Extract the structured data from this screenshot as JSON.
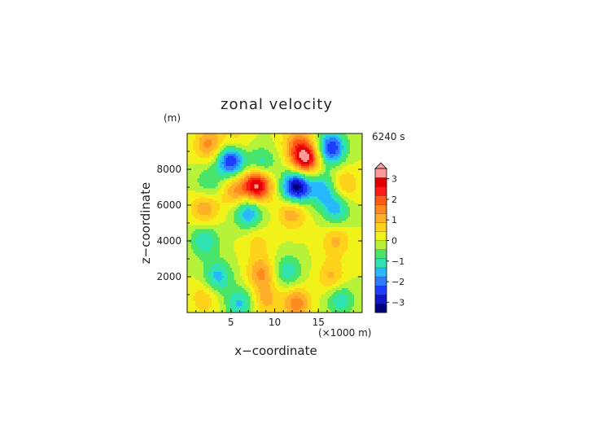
{
  "chart_data": {
    "type": "heatmap",
    "title": "zonal velocity",
    "xlabel": "x−coordinate",
    "ylabel": "z−coordinate",
    "x_unit": "(×1000 m)",
    "y_unit": "(m)",
    "time_label": "6240 s",
    "xlim": [
      0,
      20
    ],
    "ylim": [
      0,
      10000
    ],
    "x_ticks": [
      "5",
      "10",
      "15"
    ],
    "y_ticks": [
      "2000",
      "4000",
      "6000",
      "8000"
    ],
    "colorbar_ticks": [
      "3",
      "2",
      "1",
      "0",
      "−1",
      "−2",
      "−3"
    ],
    "colorbar_range": [
      -3.5,
      3.5
    ],
    "colors": [
      "#00007a",
      "#0f16c8",
      "#1e3cff",
      "#2f7bff",
      "#28b8ff",
      "#2fe3b3",
      "#49e56a",
      "#b7f23a",
      "#f2f21b",
      "#ffd21c",
      "#ffb02a",
      "#ff8a1f",
      "#ff5a14",
      "#ff1a1a",
      "#e00000",
      "#ff9a9a"
    ],
    "field_features": [
      {
        "x": 2.5,
        "z": 9400,
        "value": 1.5
      },
      {
        "x": 5.0,
        "z": 8500,
        "value": -2.8
      },
      {
        "x": 8.5,
        "z": 8300,
        "value": -1.2
      },
      {
        "x": 5.5,
        "z": 9500,
        "value": 0.8
      },
      {
        "x": 13.5,
        "z": 8600,
        "value": 3.2
      },
      {
        "x": 16.5,
        "z": 9200,
        "value": -2.6
      },
      {
        "x": 12.5,
        "z": 9500,
        "value": 1.2
      },
      {
        "x": 8.0,
        "z": 7100,
        "value": 3.3
      },
      {
        "x": 5.5,
        "z": 6800,
        "value": 1.3
      },
      {
        "x": 2.5,
        "z": 7300,
        "value": -0.9
      },
      {
        "x": 12.5,
        "z": 7000,
        "value": -3.4
      },
      {
        "x": 15.5,
        "z": 6900,
        "value": -1.5
      },
      {
        "x": 18.0,
        "z": 7100,
        "value": 1.0
      },
      {
        "x": 2.0,
        "z": 5800,
        "value": 1.2
      },
      {
        "x": 7.0,
        "z": 5600,
        "value": -1.8
      },
      {
        "x": 12.0,
        "z": 5600,
        "value": 1.3
      },
      {
        "x": 17.0,
        "z": 5800,
        "value": -1.5
      },
      {
        "x": 2.0,
        "z": 4000,
        "value": -1.3
      },
      {
        "x": 8.0,
        "z": 3900,
        "value": 0.6
      },
      {
        "x": 17.0,
        "z": 4000,
        "value": 1.0
      },
      {
        "x": 3.5,
        "z": 2000,
        "value": -1.5
      },
      {
        "x": 8.5,
        "z": 2200,
        "value": 1.4
      },
      {
        "x": 11.5,
        "z": 2300,
        "value": -1.2
      },
      {
        "x": 16.5,
        "z": 2000,
        "value": 1.0
      },
      {
        "x": 2.0,
        "z": 800,
        "value": 0.8
      },
      {
        "x": 6.0,
        "z": 500,
        "value": -1.4
      },
      {
        "x": 9.0,
        "z": 700,
        "value": 1.0
      },
      {
        "x": 12.5,
        "z": 500,
        "value": 1.6
      },
      {
        "x": 17.5,
        "z": 700,
        "value": -1.2
      }
    ]
  }
}
